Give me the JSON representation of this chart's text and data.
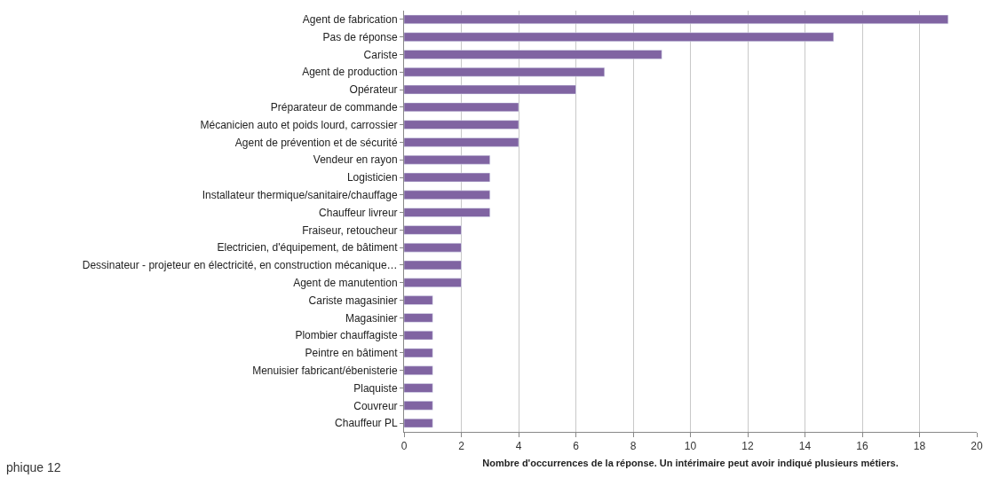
{
  "chart_data": {
    "type": "bar",
    "orientation": "horizontal",
    "categories": [
      "Agent de fabrication",
      "Pas de réponse",
      "Cariste",
      "Agent de production",
      "Opérateur",
      "Préparateur de commande",
      "Mécanicien auto et poids lourd, carrossier",
      "Agent de prévention et de sécurité",
      "Vendeur en rayon",
      "Logisticien",
      "Installateur thermique/sanitaire/chauffage",
      "Chauffeur livreur",
      "Fraiseur, retoucheur",
      "Electricien, d'équipement, de bâtiment",
      "Dessinateur - projeteur en électricité, en construction mécanique…",
      "Agent de manutention",
      "Cariste magasinier",
      "Magasinier",
      "Plombier chauffagiste",
      "Peintre en bâtiment",
      "Menuisier fabricant/ébenisterie",
      "Plaquiste",
      "Couvreur",
      "Chauffeur PL"
    ],
    "values": [
      19,
      15,
      9,
      7,
      6,
      4,
      4,
      4,
      3,
      3,
      3,
      3,
      2,
      2,
      2,
      2,
      1,
      1,
      1,
      1,
      1,
      1,
      1,
      1
    ],
    "color": "#8064a2",
    "xlim": [
      0,
      20
    ],
    "xticks": [
      0,
      2,
      4,
      6,
      8,
      10,
      12,
      14,
      16,
      18,
      20
    ],
    "xlabel": "Nombre d'occurrences de la réponse. Un intérimaire peut avoir indiqué plusieurs métiers.",
    "grid": "x",
    "annotations": [
      "phique 12"
    ]
  }
}
